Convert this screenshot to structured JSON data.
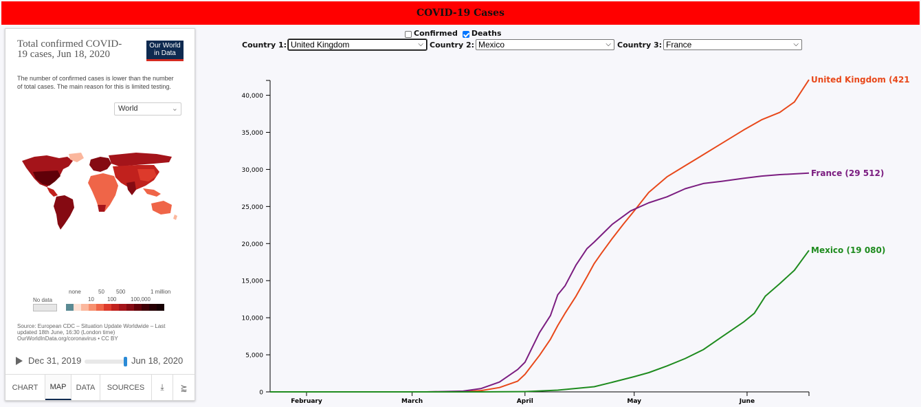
{
  "header": {
    "title": "COVID-19 Cases"
  },
  "owid": {
    "title": "Total confirmed COVID-19 cases, Jun 18, 2020",
    "logo": "Our World in Data",
    "subtitle": "The number of confirmed cases is lower than the number of total cases. The main reason for this is limited testing.",
    "region": "World",
    "legend": {
      "no_data": "No data",
      "labels": [
        "none",
        "10",
        "50",
        "100",
        "500",
        "100,000",
        "1 million"
      ],
      "colors": [
        "#5a8a93",
        "#fde0d3",
        "#fbb79d",
        "#f7906f",
        "#ef6548",
        "#dd3a2b",
        "#c1211d",
        "#a4141a",
        "#850a12",
        "#600008"
      ]
    },
    "source": "Source: European CDC – Situation Update Worldwide – Last updated 18th June, 16:30 (London time) OurWorldInData.org/coronavirus • CC BY",
    "timeline": {
      "start": "Dec 31, 2019",
      "end": "Jun 18, 2020"
    },
    "tabs": [
      "CHART",
      "MAP",
      "DATA",
      "SOURCES"
    ],
    "active_tab": "MAP"
  },
  "controls": {
    "confirmed_label": "Confirmed",
    "confirmed_checked": false,
    "deaths_label": "Deaths",
    "deaths_checked": true,
    "country1_label": "Country 1:",
    "country1_value": "United Kingdom",
    "country2_label": "Country 2:",
    "country2_value": "Mexico",
    "country3_label": "Country 3:",
    "country3_value": "France"
  },
  "chart_data": {
    "type": "line",
    "title": "",
    "xlabel": "",
    "ylabel": "",
    "x_ticks": [
      "February",
      "March",
      "April",
      "May",
      "June"
    ],
    "y_ticks": [
      "0",
      "5,000",
      "10,000",
      "15,000",
      "20,000",
      "25,000",
      "30,000",
      "35,000",
      "40,000"
    ],
    "ylim": [
      0,
      42000
    ],
    "xlim": [
      "2020-01-22",
      "2020-06-18"
    ],
    "series": [
      {
        "name": "United Kingdom",
        "end_label": "United Kingdom (421",
        "color": "#e8481a",
        "points": [
          [
            "2020-01-22",
            0
          ],
          [
            "2020-03-05",
            0
          ],
          [
            "2020-03-15",
            30
          ],
          [
            "2020-03-20",
            180
          ],
          [
            "2020-03-25",
            580
          ],
          [
            "2020-03-30",
            1450
          ],
          [
            "2020-04-01",
            2360
          ],
          [
            "2020-04-05",
            4930
          ],
          [
            "2020-04-08",
            7100
          ],
          [
            "2020-04-10",
            8950
          ],
          [
            "2020-04-12",
            10600
          ],
          [
            "2020-04-15",
            12900
          ],
          [
            "2020-04-18",
            15500
          ],
          [
            "2020-04-20",
            17300
          ],
          [
            "2020-04-22",
            18700
          ],
          [
            "2020-04-25",
            20700
          ],
          [
            "2020-04-28",
            22600
          ],
          [
            "2020-05-01",
            24400
          ],
          [
            "2020-05-05",
            26900
          ],
          [
            "2020-05-10",
            29000
          ],
          [
            "2020-05-15",
            30500
          ],
          [
            "2020-05-20",
            32000
          ],
          [
            "2020-05-25",
            33500
          ],
          [
            "2020-05-31",
            35300
          ],
          [
            "2020-06-05",
            36700
          ],
          [
            "2020-06-10",
            37700
          ],
          [
            "2020-06-14",
            39100
          ],
          [
            "2020-06-18",
            42100
          ]
        ]
      },
      {
        "name": "France",
        "end_label": "France (29 512)",
        "color": "#7b1d80",
        "points": [
          [
            "2020-01-22",
            0
          ],
          [
            "2020-03-05",
            0
          ],
          [
            "2020-03-15",
            100
          ],
          [
            "2020-03-20",
            450
          ],
          [
            "2020-03-25",
            1330
          ],
          [
            "2020-03-30",
            3020
          ],
          [
            "2020-04-01",
            4000
          ],
          [
            "2020-04-05",
            8000
          ],
          [
            "2020-04-08",
            10300
          ],
          [
            "2020-04-10",
            13100
          ],
          [
            "2020-04-12",
            14300
          ],
          [
            "2020-04-15",
            17100
          ],
          [
            "2020-04-18",
            19300
          ],
          [
            "2020-04-20",
            20200
          ],
          [
            "2020-04-25",
            22600
          ],
          [
            "2020-04-30",
            24400
          ],
          [
            "2020-05-05",
            25500
          ],
          [
            "2020-05-10",
            26300
          ],
          [
            "2020-05-15",
            27400
          ],
          [
            "2020-05-20",
            28100
          ],
          [
            "2020-05-25",
            28400
          ],
          [
            "2020-05-31",
            28800
          ],
          [
            "2020-06-05",
            29100
          ],
          [
            "2020-06-10",
            29300
          ],
          [
            "2020-06-18",
            29500
          ]
        ]
      },
      {
        "name": "Mexico",
        "end_label": "Mexico (19 080)",
        "color": "#1e8b1e",
        "points": [
          [
            "2020-01-22",
            0
          ],
          [
            "2020-03-20",
            0
          ],
          [
            "2020-04-01",
            40
          ],
          [
            "2020-04-10",
            230
          ],
          [
            "2020-04-20",
            700
          ],
          [
            "2020-04-25",
            1300
          ],
          [
            "2020-05-01",
            2050
          ],
          [
            "2020-05-05",
            2600
          ],
          [
            "2020-05-10",
            3500
          ],
          [
            "2020-05-15",
            4500
          ],
          [
            "2020-05-20",
            5700
          ],
          [
            "2020-05-25",
            7400
          ],
          [
            "2020-05-31",
            9400
          ],
          [
            "2020-06-03",
            10600
          ],
          [
            "2020-06-06",
            12900
          ],
          [
            "2020-06-10",
            14600
          ],
          [
            "2020-06-14",
            16400
          ],
          [
            "2020-06-18",
            19080
          ]
        ]
      }
    ]
  }
}
